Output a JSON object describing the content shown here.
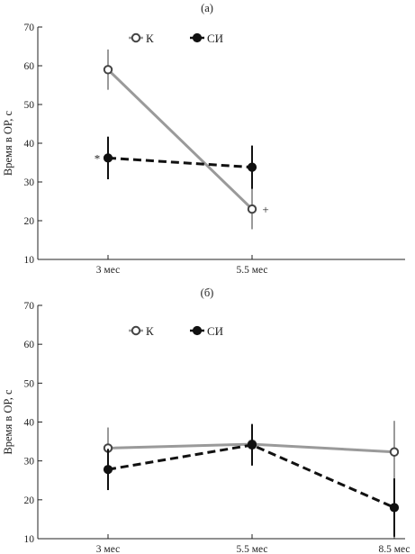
{
  "chart_data": [
    {
      "type": "line",
      "panel_label": "(а)",
      "categories": [
        "3 мес",
        "5.5 мес"
      ],
      "ylabel": "Время в ОР, с",
      "ylim": [
        10,
        70
      ],
      "yticks": [
        10,
        20,
        30,
        40,
        50,
        60,
        70
      ],
      "grid": false,
      "legend_position": "top-left",
      "series": [
        {
          "name": "К",
          "values": [
            59,
            23
          ],
          "error": [
            5.2,
            5.2
          ],
          "color": "#9a9a9a",
          "dashed": false,
          "marker": "open-circle"
        },
        {
          "name": "СИ",
          "values": [
            36.2,
            33.8
          ],
          "error": [
            5.5,
            5.6
          ],
          "color": "#111111",
          "dashed": true,
          "marker": "filled-circle"
        }
      ],
      "annotations": [
        {
          "text": "*",
          "category": "3 мес",
          "series": "СИ"
        },
        {
          "text": "+",
          "category": "5.5 мес",
          "series": "К"
        }
      ]
    },
    {
      "type": "line",
      "panel_label": "(б)",
      "categories": [
        "3 мес",
        "5.5 мес",
        "8.5 мес"
      ],
      "ylabel": "Время в ОР, с",
      "ylim": [
        10,
        70
      ],
      "yticks": [
        10,
        20,
        30,
        40,
        50,
        60,
        70
      ],
      "grid": false,
      "legend_position": "top-left",
      "series": [
        {
          "name": "К",
          "values": [
            33.3,
            34.3,
            32.3
          ],
          "error": [
            5.3,
            5.3,
            8.0
          ],
          "color": "#9a9a9a",
          "dashed": false,
          "marker": "open-circle"
        },
        {
          "name": "СИ",
          "values": [
            27.8,
            34.1,
            18
          ],
          "error": [
            5.3,
            5.3,
            7.5
          ],
          "color": "#111111",
          "dashed": true,
          "marker": "filled-circle"
        }
      ],
      "annotations": []
    }
  ]
}
